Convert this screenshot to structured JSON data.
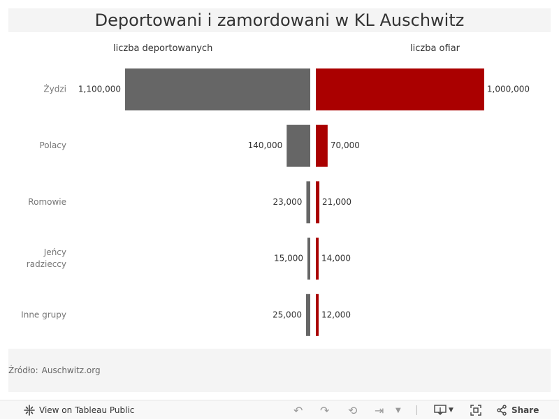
{
  "title": "Deportowani i zamordowani w KL Auschwitz",
  "columns": {
    "left": "liczba deportowanych",
    "right": "liczba ofiar"
  },
  "colors": {
    "deported": "#666666",
    "victims": "#aa0000",
    "panel_bg": "#f4f4f4"
  },
  "chart_data": {
    "type": "bar",
    "orientation": "horizontal-butterfly",
    "categories": [
      "Żydzi",
      "Polacy",
      "Romowie",
      "Jeńcy radzieccy",
      "Inne grupy"
    ],
    "category_lines": [
      [
        "Żydzi"
      ],
      [
        "Polacy"
      ],
      [
        "Romowie"
      ],
      [
        "Jeńcy",
        "radzieccy"
      ],
      [
        "Inne grupy"
      ]
    ],
    "series": [
      {
        "name": "liczba deportowanych",
        "values": [
          1100000,
          140000,
          23000,
          15000,
          25000
        ],
        "labels": [
          "1,100,000",
          "140,000",
          "23,000",
          "15,000",
          "25,000"
        ],
        "color": "#666666"
      },
      {
        "name": "liczba ofiar",
        "values": [
          1000000,
          70000,
          21000,
          14000,
          12000
        ],
        "labels": [
          "1,000,000",
          "70,000",
          "21,000",
          "14,000",
          "12,000"
        ],
        "color": "#aa0000"
      }
    ]
  },
  "source": {
    "label": "Źródło:",
    "value": "Auschwitz.org"
  },
  "toolbar": {
    "view_label": "View on Tableau Public",
    "share_label": "Share",
    "icons": [
      "tableau-icon",
      "undo-icon",
      "redo-icon",
      "revert-icon",
      "refresh-icon",
      "download-icon",
      "fullscreen-icon",
      "share-icon"
    ]
  }
}
